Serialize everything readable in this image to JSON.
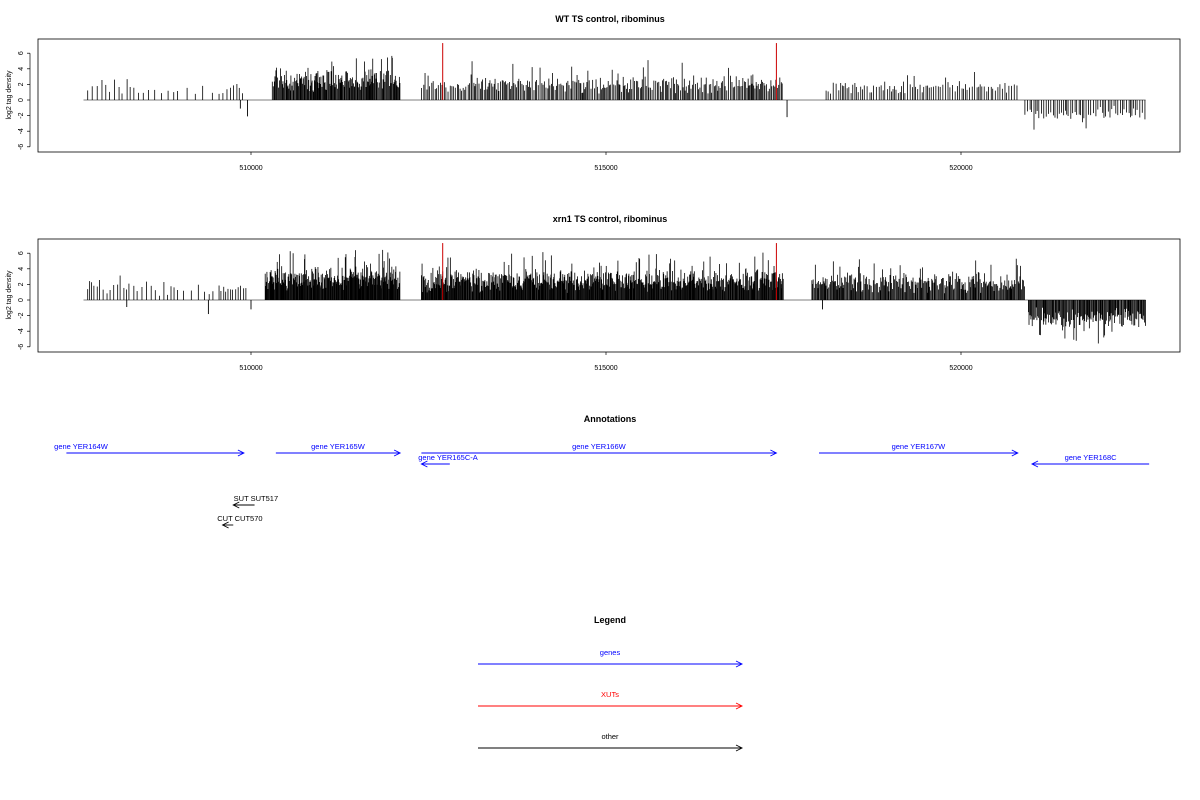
{
  "chart_data": [
    {
      "type": "bar",
      "title": "WT TS control, ribominus",
      "ylabel": "log2 tag density",
      "xlabel": "",
      "xlim": [
        507500,
        523000
      ],
      "ylim": [
        -6,
        7
      ],
      "xticks": [
        510000,
        515000,
        520000
      ],
      "xtick_labels": [
        "510000",
        "515000",
        "520000"
      ],
      "yticks": [
        -6,
        -4,
        -2,
        0,
        2,
        4,
        6
      ],
      "ytick_labels": [
        "-6",
        "-4",
        "-2",
        "0",
        "2",
        "4",
        "6"
      ],
      "grid": false,
      "baseline_range": [
        507500,
        522600
      ],
      "highlight_color": "#cc0000",
      "highlight_x": [
        512700,
        517400
      ],
      "highlight_height": 7.3,
      "density_blocks": [
        {
          "start": 507700,
          "end": 508300,
          "step": 55,
          "sign": 1,
          "base": 1.6,
          "amp": 2.4
        },
        {
          "start": 508350,
          "end": 509000,
          "step": 70,
          "sign": 1,
          "base": 1.3,
          "amp": 1.5
        },
        {
          "start": 509100,
          "end": 509500,
          "step": 110,
          "sign": 1,
          "base": 0.9,
          "amp": 1.2
        },
        {
          "start": 509550,
          "end": 509900,
          "step": 50,
          "sign": 1,
          "base": 1.4,
          "amp": 1.6
        },
        {
          "start": 510300,
          "end": 512100,
          "step": 11,
          "sign": 1,
          "base": 2.2,
          "amp": 4.5
        },
        {
          "start": 512400,
          "end": 513100,
          "step": 25,
          "sign": 1,
          "base": 1.6,
          "amp": 2.6
        },
        {
          "start": 513100,
          "end": 517500,
          "step": 19,
          "sign": 1,
          "base": 1.8,
          "amp": 3.4
        },
        {
          "start": 518100,
          "end": 520800,
          "step": 30,
          "sign": 1,
          "base": 1.5,
          "amp": 2.4
        },
        {
          "start": 520900,
          "end": 522600,
          "step": 28,
          "sign": -1,
          "base": 1.4,
          "amp": 3.3
        }
      ],
      "single_bars": [
        {
          "x": 509850,
          "y": -1.1
        },
        {
          "x": 509950,
          "y": -2.1
        },
        {
          "x": 517550,
          "y": -2.2
        }
      ]
    },
    {
      "type": "bar",
      "title": "xrn1 TS control, ribominus",
      "ylabel": "log2 tag density",
      "xlabel": "",
      "xlim": [
        507500,
        523000
      ],
      "ylim": [
        -6,
        7
      ],
      "xticks": [
        510000,
        515000,
        520000
      ],
      "xtick_labels": [
        "510000",
        "515000",
        "520000"
      ],
      "yticks": [
        -6,
        -4,
        -2,
        0,
        2,
        4,
        6
      ],
      "ytick_labels": [
        "-6",
        "-4",
        "-2",
        "0",
        "2",
        "4",
        "6"
      ],
      "grid": false,
      "baseline_range": [
        507500,
        522600
      ],
      "highlight_color": "#cc0000",
      "highlight_x": [
        512700,
        517400
      ],
      "highlight_height": 7.3,
      "density_blocks": [
        {
          "start": 507700,
          "end": 508300,
          "step": 40,
          "sign": 1,
          "base": 1.6,
          "amp": 2.6
        },
        {
          "start": 508350,
          "end": 509000,
          "step": 55,
          "sign": 1,
          "base": 1.3,
          "amp": 1.6
        },
        {
          "start": 509050,
          "end": 509500,
          "step": 80,
          "sign": 1,
          "base": 1.0,
          "amp": 1.4
        },
        {
          "start": 509550,
          "end": 509950,
          "step": 35,
          "sign": 1,
          "base": 1.5,
          "amp": 1.8
        },
        {
          "start": 510200,
          "end": 512100,
          "step": 8,
          "sign": 1,
          "base": 2.4,
          "amp": 4.5
        },
        {
          "start": 512400,
          "end": 517500,
          "step": 9,
          "sign": 1,
          "base": 2.2,
          "amp": 4.2
        },
        {
          "start": 517900,
          "end": 520900,
          "step": 12,
          "sign": 1,
          "base": 2.0,
          "amp": 3.6
        },
        {
          "start": 520950,
          "end": 522600,
          "step": 12,
          "sign": -1,
          "base": 2.2,
          "amp": 3.6
        }
      ],
      "single_bars": [
        {
          "x": 508250,
          "y": -0.9
        },
        {
          "x": 509400,
          "y": -1.8
        },
        {
          "x": 510000,
          "y": -1.2
        },
        {
          "x": 518050,
          "y": -1.2
        }
      ]
    }
  ],
  "annotations": {
    "title": "Annotations",
    "items": [
      {
        "label": "gene YER164W",
        "start": 507400,
        "end": 509900,
        "strand": "+",
        "color": "#0000ff",
        "row": 0
      },
      {
        "label": "gene YER165W",
        "start": 510350,
        "end": 512100,
        "strand": "+",
        "color": "#0000ff",
        "row": 0
      },
      {
        "label": "gene YER165C-A",
        "start": 512400,
        "end": 512800,
        "strand": "-",
        "color": "#0000ff",
        "row": 1
      },
      {
        "label": "gene YER166W",
        "start": 512400,
        "end": 517400,
        "strand": "+",
        "color": "#0000ff",
        "row": 0
      },
      {
        "label": "gene YER167W",
        "start": 518000,
        "end": 520800,
        "strand": "+",
        "color": "#0000ff",
        "row": 0
      },
      {
        "label": "gene YER168C",
        "start": 521000,
        "end": 522650,
        "strand": "-",
        "color": "#0000ff",
        "row": 1
      },
      {
        "label": "SUT SUT517",
        "start": 509750,
        "end": 510050,
        "strand": "-",
        "color": "#000000",
        "row": 2
      },
      {
        "label": "CUT CUT570",
        "start": 509600,
        "end": 509750,
        "strand": "-",
        "color": "#000000",
        "row": 3
      }
    ]
  },
  "legend": {
    "title": "Legend",
    "items": [
      {
        "label": "genes",
        "color": "#0000ff"
      },
      {
        "label": "XUTs",
        "color": "#ff0000"
      },
      {
        "label": "other",
        "color": "#000000"
      }
    ]
  }
}
